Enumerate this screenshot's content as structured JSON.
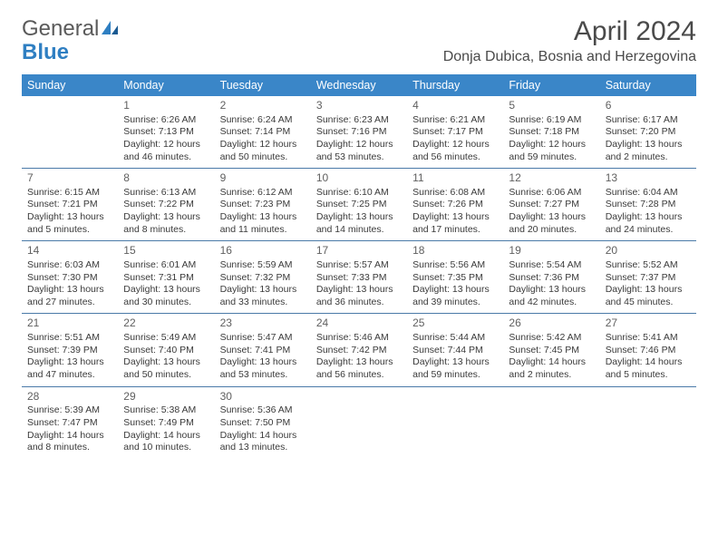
{
  "logo": {
    "text1": "General",
    "text2": "Blue"
  },
  "title": "April 2024",
  "location": "Donja Dubica, Bosnia and Herzegovina",
  "colors": {
    "header_bg": "#3a86c8",
    "header_fg": "#ffffff",
    "row_border": "#4a7aa8",
    "text": "#3a3a3a",
    "daynum": "#606060",
    "title": "#4a4a4a",
    "logo_gray": "#5a5a5a",
    "logo_blue": "#2f7fc2"
  },
  "weekday_labels": [
    "Sunday",
    "Monday",
    "Tuesday",
    "Wednesday",
    "Thursday",
    "Friday",
    "Saturday"
  ],
  "weeks": [
    [
      null,
      {
        "n": "1",
        "sr": "Sunrise: 6:26 AM",
        "ss": "Sunset: 7:13 PM",
        "dl": "Daylight: 12 hours and 46 minutes."
      },
      {
        "n": "2",
        "sr": "Sunrise: 6:24 AM",
        "ss": "Sunset: 7:14 PM",
        "dl": "Daylight: 12 hours and 50 minutes."
      },
      {
        "n": "3",
        "sr": "Sunrise: 6:23 AM",
        "ss": "Sunset: 7:16 PM",
        "dl": "Daylight: 12 hours and 53 minutes."
      },
      {
        "n": "4",
        "sr": "Sunrise: 6:21 AM",
        "ss": "Sunset: 7:17 PM",
        "dl": "Daylight: 12 hours and 56 minutes."
      },
      {
        "n": "5",
        "sr": "Sunrise: 6:19 AM",
        "ss": "Sunset: 7:18 PM",
        "dl": "Daylight: 12 hours and 59 minutes."
      },
      {
        "n": "6",
        "sr": "Sunrise: 6:17 AM",
        "ss": "Sunset: 7:20 PM",
        "dl": "Daylight: 13 hours and 2 minutes."
      }
    ],
    [
      {
        "n": "7",
        "sr": "Sunrise: 6:15 AM",
        "ss": "Sunset: 7:21 PM",
        "dl": "Daylight: 13 hours and 5 minutes."
      },
      {
        "n": "8",
        "sr": "Sunrise: 6:13 AM",
        "ss": "Sunset: 7:22 PM",
        "dl": "Daylight: 13 hours and 8 minutes."
      },
      {
        "n": "9",
        "sr": "Sunrise: 6:12 AM",
        "ss": "Sunset: 7:23 PM",
        "dl": "Daylight: 13 hours and 11 minutes."
      },
      {
        "n": "10",
        "sr": "Sunrise: 6:10 AM",
        "ss": "Sunset: 7:25 PM",
        "dl": "Daylight: 13 hours and 14 minutes."
      },
      {
        "n": "11",
        "sr": "Sunrise: 6:08 AM",
        "ss": "Sunset: 7:26 PM",
        "dl": "Daylight: 13 hours and 17 minutes."
      },
      {
        "n": "12",
        "sr": "Sunrise: 6:06 AM",
        "ss": "Sunset: 7:27 PM",
        "dl": "Daylight: 13 hours and 20 minutes."
      },
      {
        "n": "13",
        "sr": "Sunrise: 6:04 AM",
        "ss": "Sunset: 7:28 PM",
        "dl": "Daylight: 13 hours and 24 minutes."
      }
    ],
    [
      {
        "n": "14",
        "sr": "Sunrise: 6:03 AM",
        "ss": "Sunset: 7:30 PM",
        "dl": "Daylight: 13 hours and 27 minutes."
      },
      {
        "n": "15",
        "sr": "Sunrise: 6:01 AM",
        "ss": "Sunset: 7:31 PM",
        "dl": "Daylight: 13 hours and 30 minutes."
      },
      {
        "n": "16",
        "sr": "Sunrise: 5:59 AM",
        "ss": "Sunset: 7:32 PM",
        "dl": "Daylight: 13 hours and 33 minutes."
      },
      {
        "n": "17",
        "sr": "Sunrise: 5:57 AM",
        "ss": "Sunset: 7:33 PM",
        "dl": "Daylight: 13 hours and 36 minutes."
      },
      {
        "n": "18",
        "sr": "Sunrise: 5:56 AM",
        "ss": "Sunset: 7:35 PM",
        "dl": "Daylight: 13 hours and 39 minutes."
      },
      {
        "n": "19",
        "sr": "Sunrise: 5:54 AM",
        "ss": "Sunset: 7:36 PM",
        "dl": "Daylight: 13 hours and 42 minutes."
      },
      {
        "n": "20",
        "sr": "Sunrise: 5:52 AM",
        "ss": "Sunset: 7:37 PM",
        "dl": "Daylight: 13 hours and 45 minutes."
      }
    ],
    [
      {
        "n": "21",
        "sr": "Sunrise: 5:51 AM",
        "ss": "Sunset: 7:39 PM",
        "dl": "Daylight: 13 hours and 47 minutes."
      },
      {
        "n": "22",
        "sr": "Sunrise: 5:49 AM",
        "ss": "Sunset: 7:40 PM",
        "dl": "Daylight: 13 hours and 50 minutes."
      },
      {
        "n": "23",
        "sr": "Sunrise: 5:47 AM",
        "ss": "Sunset: 7:41 PM",
        "dl": "Daylight: 13 hours and 53 minutes."
      },
      {
        "n": "24",
        "sr": "Sunrise: 5:46 AM",
        "ss": "Sunset: 7:42 PM",
        "dl": "Daylight: 13 hours and 56 minutes."
      },
      {
        "n": "25",
        "sr": "Sunrise: 5:44 AM",
        "ss": "Sunset: 7:44 PM",
        "dl": "Daylight: 13 hours and 59 minutes."
      },
      {
        "n": "26",
        "sr": "Sunrise: 5:42 AM",
        "ss": "Sunset: 7:45 PM",
        "dl": "Daylight: 14 hours and 2 minutes."
      },
      {
        "n": "27",
        "sr": "Sunrise: 5:41 AM",
        "ss": "Sunset: 7:46 PM",
        "dl": "Daylight: 14 hours and 5 minutes."
      }
    ],
    [
      {
        "n": "28",
        "sr": "Sunrise: 5:39 AM",
        "ss": "Sunset: 7:47 PM",
        "dl": "Daylight: 14 hours and 8 minutes."
      },
      {
        "n": "29",
        "sr": "Sunrise: 5:38 AM",
        "ss": "Sunset: 7:49 PM",
        "dl": "Daylight: 14 hours and 10 minutes."
      },
      {
        "n": "30",
        "sr": "Sunrise: 5:36 AM",
        "ss": "Sunset: 7:50 PM",
        "dl": "Daylight: 14 hours and 13 minutes."
      },
      null,
      null,
      null,
      null
    ]
  ]
}
